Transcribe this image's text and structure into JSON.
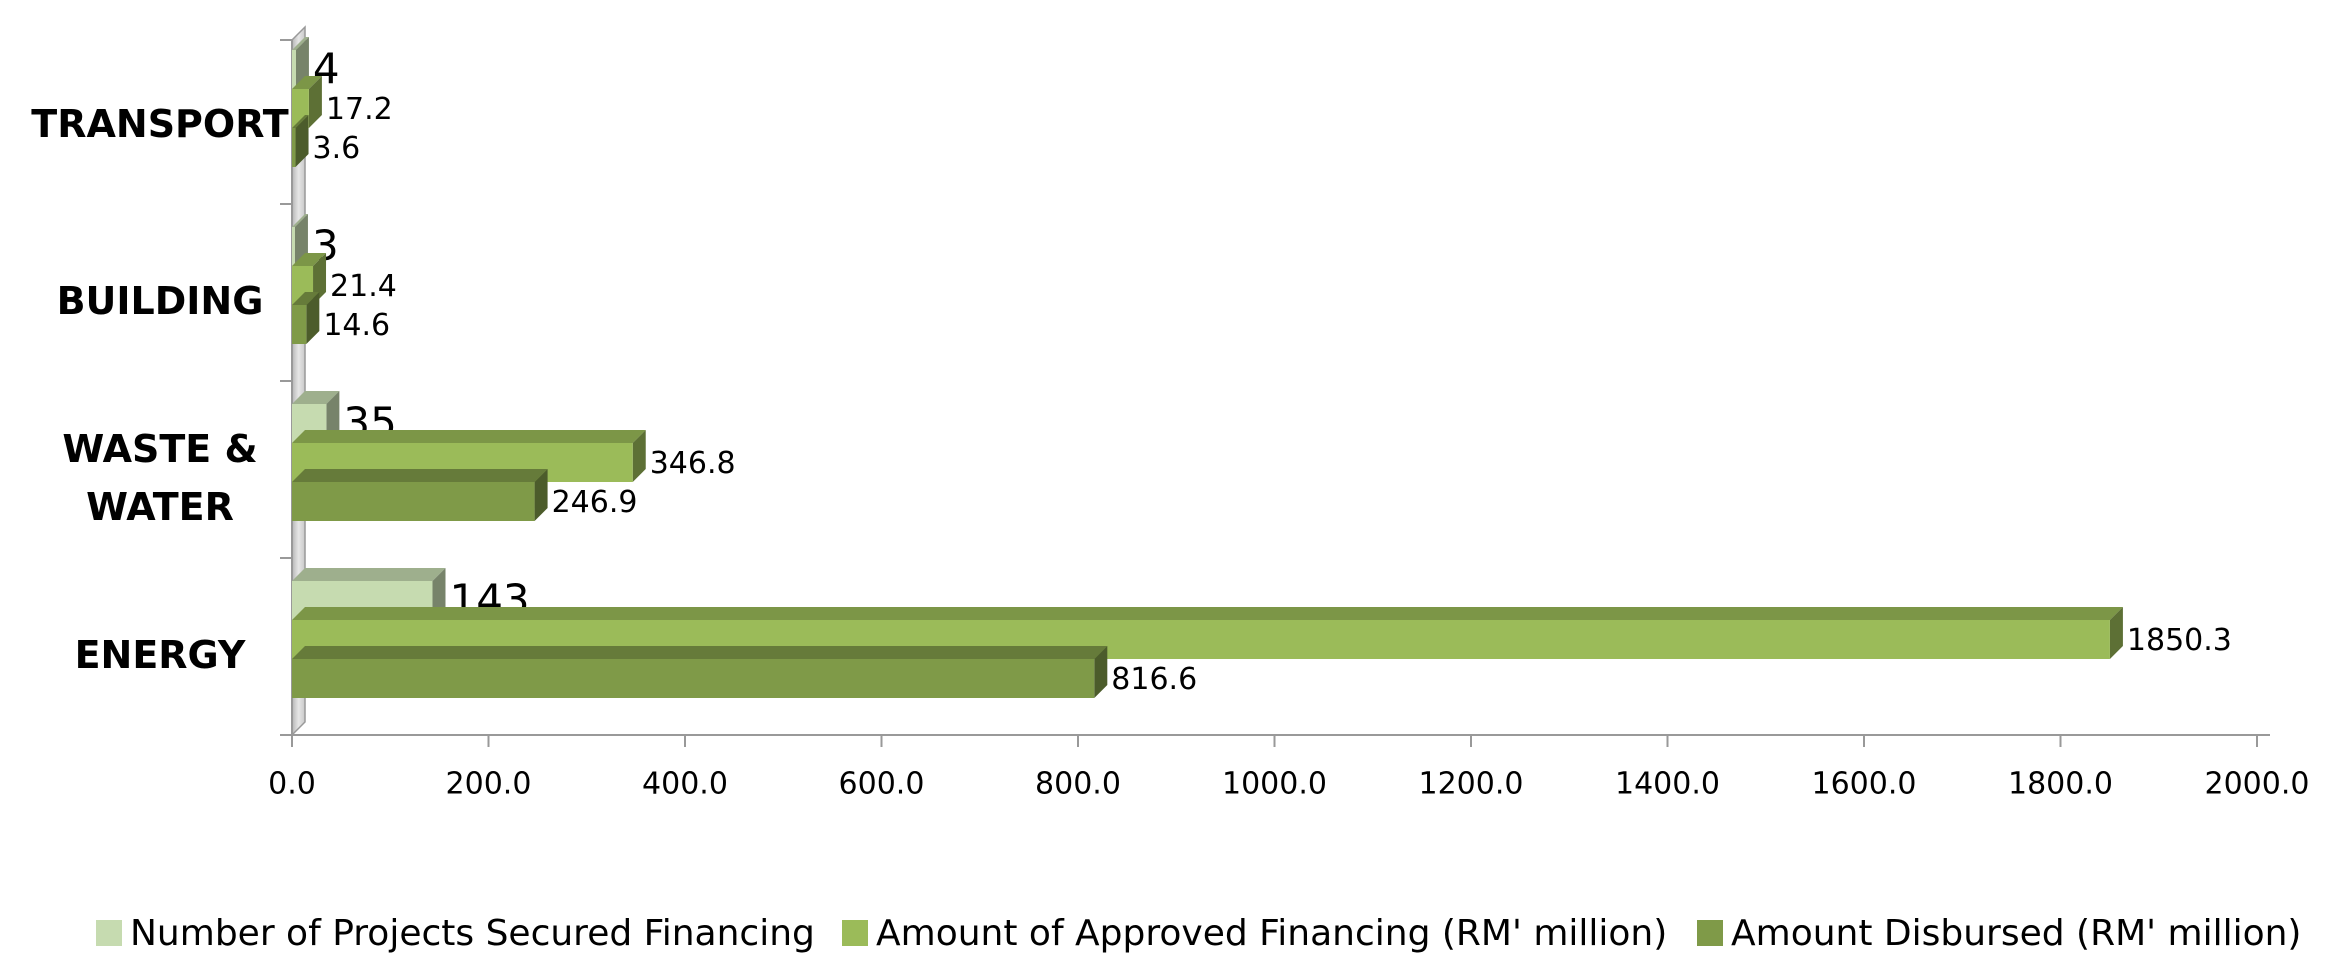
{
  "chart_data": {
    "type": "bar",
    "orientation": "horizontal",
    "style": "3d",
    "categories": [
      "ENERGY",
      "WASTE & WATER",
      "BUILDING",
      "TRANSPORT"
    ],
    "series": [
      {
        "name": "Number of Projects Secured Financing",
        "color": "#c6dbb0",
        "values": [
          143,
          35,
          3,
          4
        ]
      },
      {
        "name": "Amount of Approved Financing (RM' million)",
        "color": "#9bbb59",
        "values": [
          1850.3,
          346.8,
          21.4,
          17.2
        ]
      },
      {
        "name": "Amount Disbursed (RM' million)",
        "color": "#7f9a48",
        "values": [
          816.6,
          246.9,
          14.6,
          3.6
        ]
      }
    ],
    "xlim": [
      0,
      2000
    ],
    "xticks": [
      {
        "value": 0,
        "label": "0.0"
      },
      {
        "value": 200,
        "label": "200.0"
      },
      {
        "value": 400,
        "label": "400.0"
      },
      {
        "value": 600,
        "label": "600.0"
      },
      {
        "value": 800,
        "label": "800.0"
      },
      {
        "value": 1000,
        "label": "1000.0"
      },
      {
        "value": 1200,
        "label": "1200.0"
      },
      {
        "value": 1400,
        "label": "1400.0"
      },
      {
        "value": 1600,
        "label": "1600.0"
      },
      {
        "value": 1800,
        "label": "1800.0"
      },
      {
        "value": 2000,
        "label": "2000.0"
      }
    ],
    "legend": "bottom"
  }
}
